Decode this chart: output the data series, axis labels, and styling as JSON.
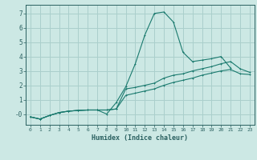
{
  "xlabel": "Humidex (Indice chaleur)",
  "background_color": "#cce8e4",
  "grid_color": "#aacfcc",
  "line_color": "#1a7a6e",
  "spine_color": "#2a6060",
  "xlim": [
    -0.5,
    23.5
  ],
  "ylim": [
    -0.75,
    7.6
  ],
  "xticks": [
    0,
    1,
    2,
    3,
    4,
    5,
    6,
    7,
    8,
    9,
    10,
    11,
    12,
    13,
    14,
    15,
    16,
    17,
    18,
    19,
    20,
    21,
    22,
    23
  ],
  "yticks": [
    0,
    1,
    2,
    3,
    4,
    5,
    6,
    7
  ],
  "ytick_labels": [
    "-0",
    "1",
    "2",
    "3",
    "4",
    "5",
    "6",
    "7"
  ],
  "curve1_y": [
    -0.2,
    -0.35,
    -0.1,
    0.1,
    0.2,
    0.25,
    0.28,
    0.28,
    0.0,
    0.8,
    1.9,
    3.5,
    5.5,
    7.0,
    7.1,
    6.4,
    4.3,
    3.65,
    3.75,
    3.85,
    4.0,
    3.2,
    null,
    null
  ],
  "curve2_y": [
    -0.2,
    -0.35,
    -0.1,
    0.1,
    0.2,
    0.25,
    0.28,
    0.28,
    0.28,
    0.35,
    1.75,
    1.85,
    2.0,
    2.15,
    2.5,
    2.7,
    2.8,
    3.0,
    3.15,
    3.3,
    3.5,
    3.65,
    3.15,
    2.9
  ],
  "curve3_y": [
    -0.2,
    -0.35,
    -0.1,
    0.1,
    0.2,
    0.25,
    0.28,
    0.28,
    0.28,
    0.35,
    1.3,
    1.45,
    1.6,
    1.75,
    2.0,
    2.2,
    2.35,
    2.5,
    2.7,
    2.85,
    3.0,
    3.1,
    2.8,
    2.75
  ]
}
